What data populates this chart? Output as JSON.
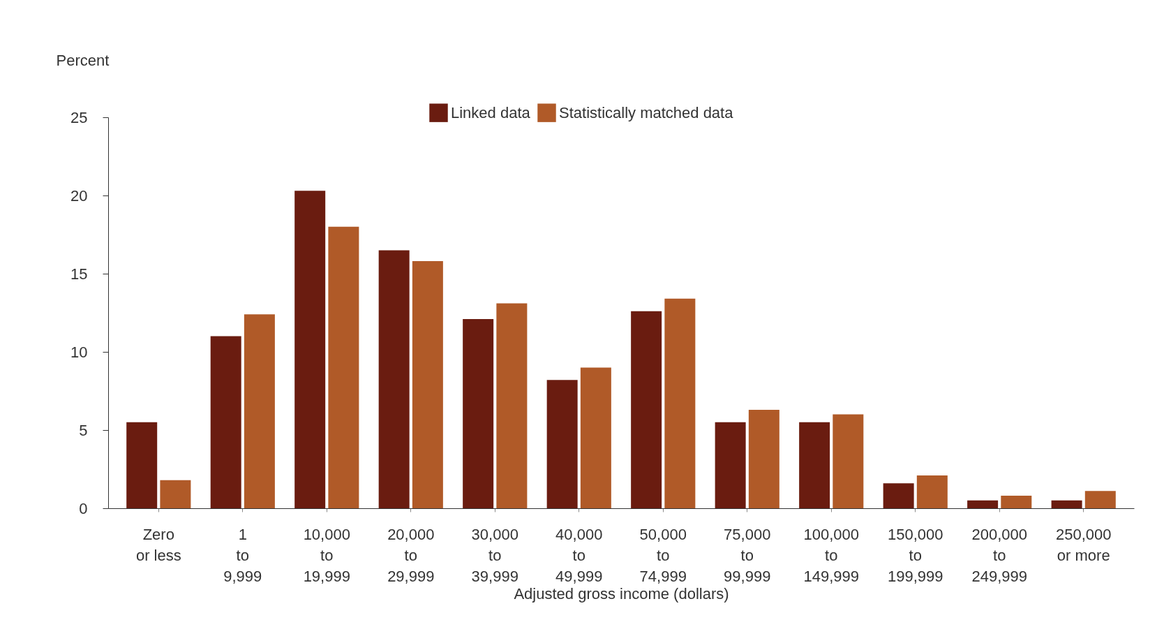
{
  "chart_data": {
    "type": "bar",
    "xlabel": "Adjusted gross income (dollars)",
    "ylabel": "Percent",
    "categories": [
      "Zero\nor less",
      "1\nto\n9,999",
      "10,000\nto\n19,999",
      "20,000\nto\n29,999",
      "30,000\nto\n39,999",
      "40,000\nto\n49,999",
      "50,000\nto\n74,999",
      "75,000\nto\n99,999",
      "100,000\nto\n149,999",
      "150,000\nto\n199,999",
      "200,000\nto\n249,999",
      "250,000\nor more"
    ],
    "series": [
      {
        "name": "Linked data",
        "color": "#6a1c10",
        "values": [
          5.5,
          11.0,
          20.3,
          16.5,
          12.1,
          8.2,
          12.6,
          5.5,
          5.5,
          1.6,
          0.5,
          0.5
        ]
      },
      {
        "name": "Statistically matched data",
        "color": "#b05a28",
        "values": [
          1.8,
          12.4,
          18.0,
          15.8,
          13.1,
          9.0,
          13.4,
          6.3,
          6.0,
          2.1,
          0.8,
          1.1
        ]
      }
    ],
    "ylim": [
      0,
      25
    ],
    "yticks": [
      0,
      5,
      10,
      15,
      20,
      25
    ],
    "grid": false,
    "legend": "top"
  }
}
